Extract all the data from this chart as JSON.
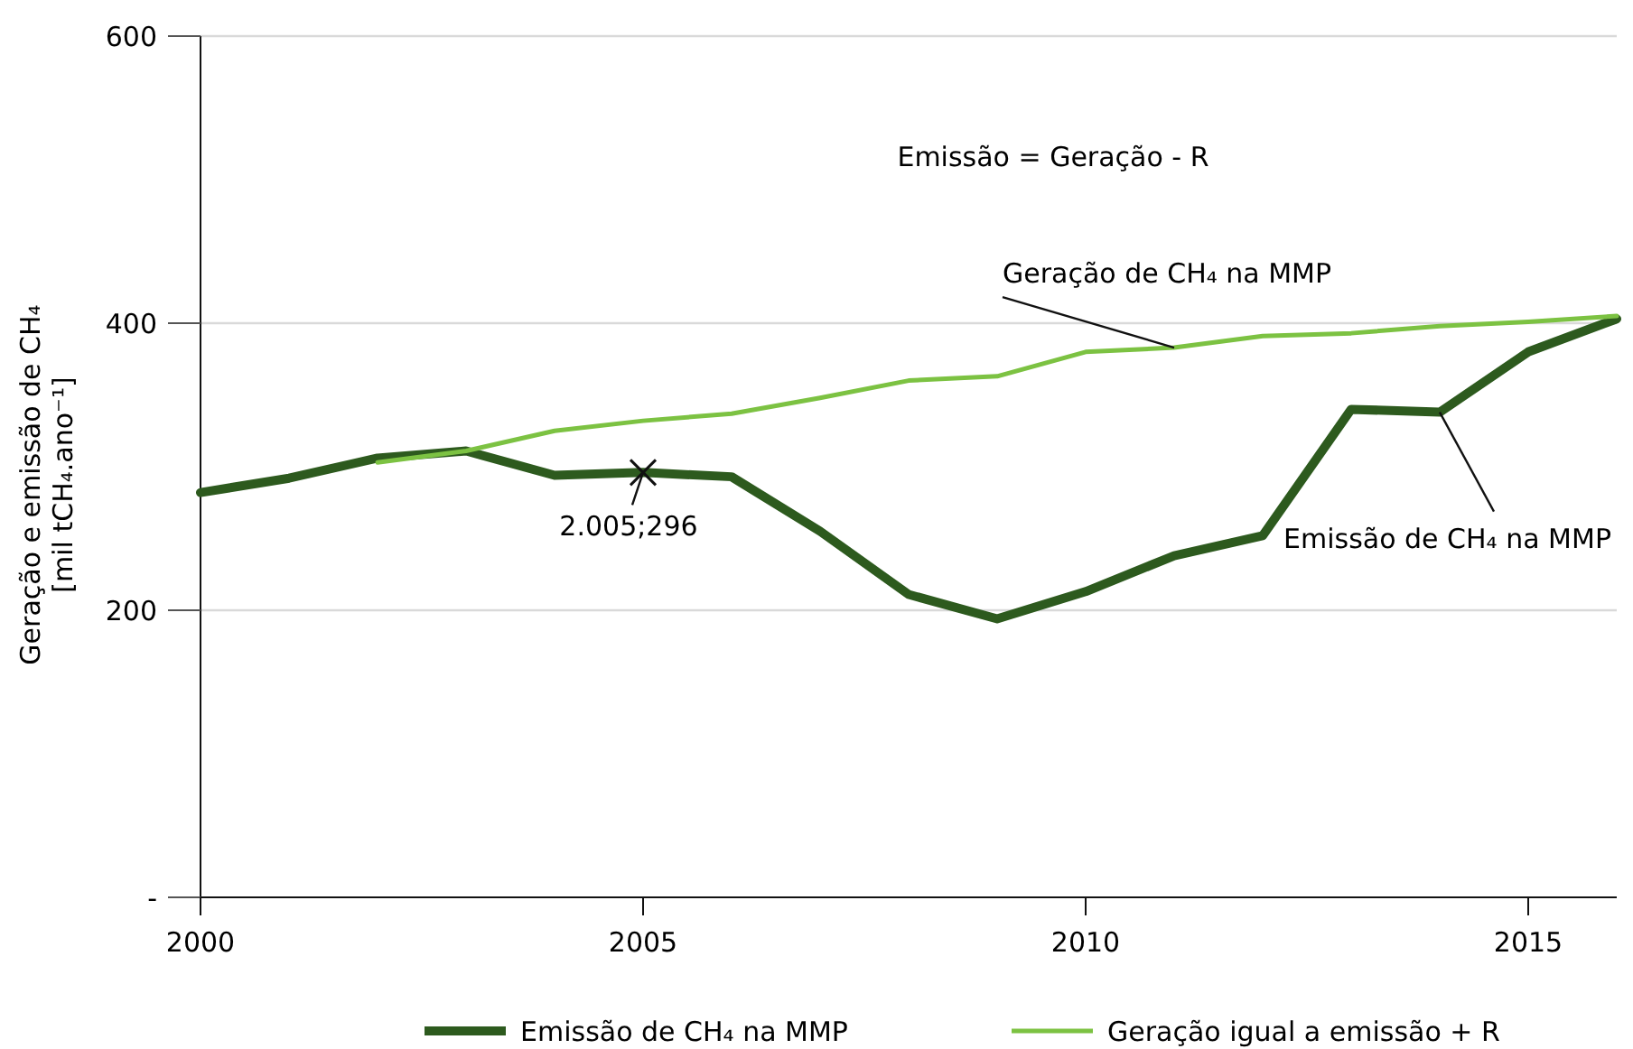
{
  "chart_data": {
    "type": "line",
    "ylabel": "Geração e emissão de CH₄\n[mil tCH₄.ano⁻¹]",
    "x": [
      2000,
      2001,
      2002,
      2003,
      2004,
      2005,
      2006,
      2007,
      2008,
      2009,
      2010,
      2011,
      2012,
      2013,
      2014,
      2015,
      2016
    ],
    "xlim": [
      2000,
      2016
    ],
    "xticks": [
      2000,
      2005,
      2010,
      2015
    ],
    "ylim": [
      0,
      600
    ],
    "yticks": [
      {
        "value": 0,
        "label": "-"
      },
      200,
      400,
      600
    ],
    "grid": "y",
    "legend": "bottom",
    "marker": "none",
    "line_style": "solid",
    "series": [
      {
        "name": "Emissão de CH₄ na MMP",
        "color": "#2d5a1e",
        "values": [
          282,
          292,
          306,
          311,
          294,
          296,
          293,
          255,
          211,
          194,
          213,
          238,
          252,
          340,
          338,
          380,
          403
        ]
      },
      {
        "name": "Geração igual a emissão + R",
        "color": "#7cc242",
        "values": [
          null,
          null,
          303,
          311,
          325,
          332,
          337,
          348,
          360,
          363,
          380,
          383,
          391,
          393,
          398,
          401,
          405
        ]
      }
    ],
    "annotations": [
      "Emissão = Geração - R",
      {
        "text": "Geração de CH₄ na MMP",
        "x": 2011,
        "y": 383
      },
      {
        "text": "Emissão de CH₄ na MMP",
        "x": 2014,
        "y": 338
      },
      {
        "text": "2.005;296",
        "x": 2005,
        "y": 296
      }
    ]
  }
}
